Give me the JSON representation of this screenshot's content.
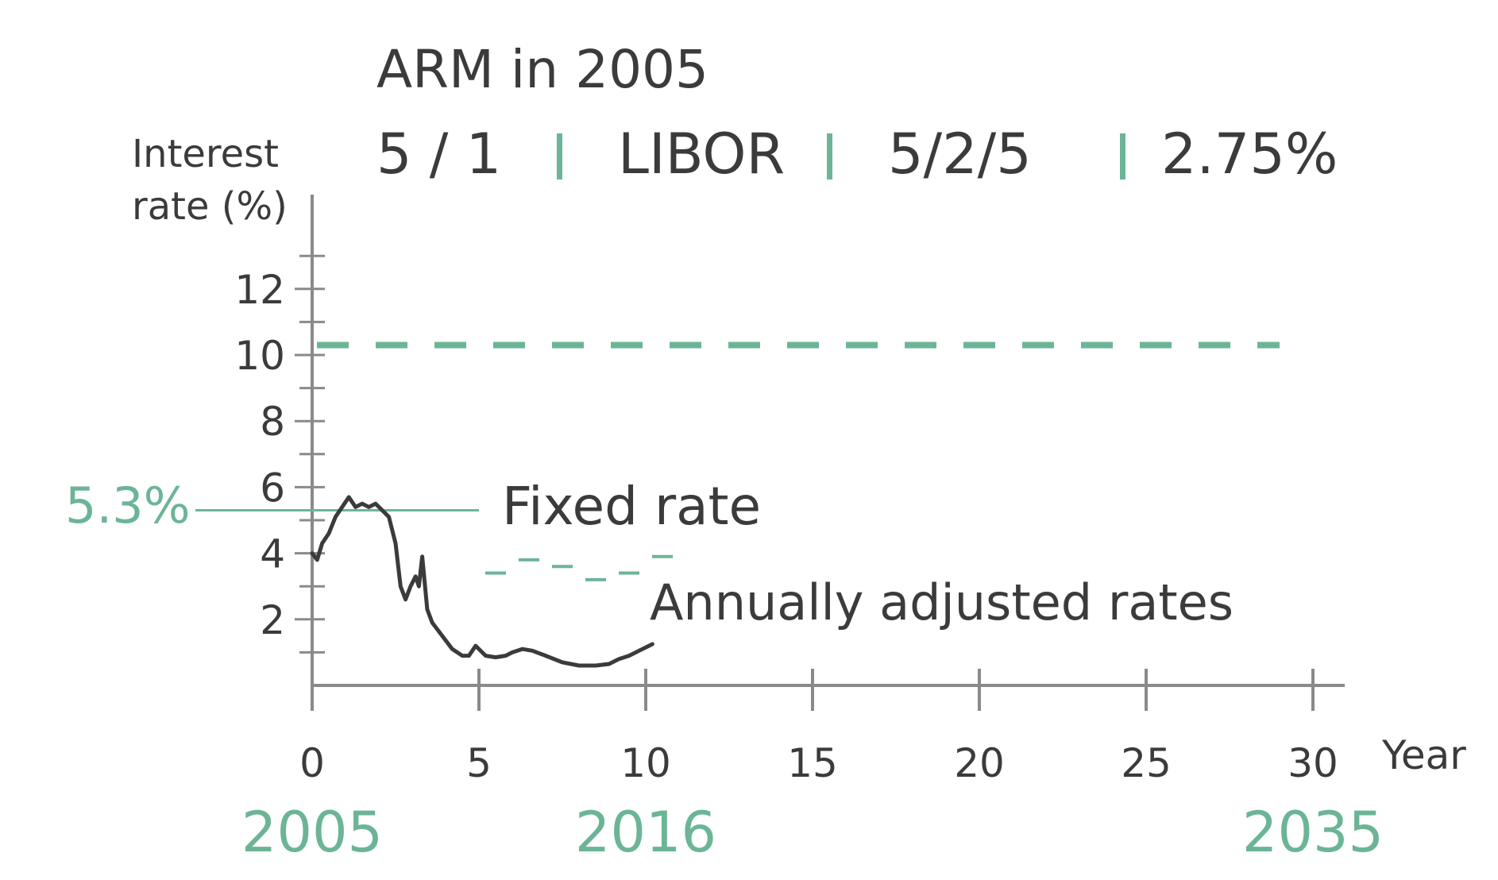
{
  "chart_data": {
    "type": "line",
    "title": "ARM in 2005",
    "subtitle_parts": [
      "5 / 1",
      "LIBOR",
      "5/2/5",
      "2.75%"
    ],
    "ylabel_line1": "Interest",
    "ylabel_line2": "rate (%)",
    "xlabel": "Year",
    "xlim": [
      0,
      30
    ],
    "ylim": [
      0,
      14
    ],
    "x_ticks": [
      0,
      5,
      10,
      15,
      20,
      25,
      30
    ],
    "y_ticks": [
      2,
      4,
      6,
      8,
      10,
      12
    ],
    "year_labels": [
      {
        "x": 0,
        "label": "2005"
      },
      {
        "x": 10,
        "label": "2016"
      },
      {
        "x": 30,
        "label": "2035"
      }
    ],
    "cap_rate": 10.3,
    "fixed_rate": {
      "value": 5.3,
      "label_value": "5.3%",
      "label": "Fixed rate"
    },
    "annual_label": "Annually adjusted rates",
    "annual_segments": [
      {
        "x": [
          5,
          6
        ],
        "y": [
          3.4,
          3.4
        ]
      },
      {
        "x": [
          6,
          7
        ],
        "y": [
          3.8,
          3.8
        ]
      },
      {
        "x": [
          7,
          8
        ],
        "y": [
          3.6,
          3.6
        ]
      },
      {
        "x": [
          8,
          9
        ],
        "y": [
          3.2,
          3.2
        ]
      },
      {
        "x": [
          9,
          10
        ],
        "y": [
          3.4,
          3.4
        ]
      },
      {
        "x": [
          10,
          11
        ],
        "y": [
          3.9,
          3.9
        ]
      }
    ],
    "series": [
      {
        "x": [
          0,
          0.15,
          0.3,
          0.5,
          0.7,
          0.9,
          1.1,
          1.3,
          1.5,
          1.7,
          1.9,
          2.1,
          2.3,
          2.5,
          2.65,
          2.8,
          2.95,
          3.1,
          3.2,
          3.3,
          3.45,
          3.6,
          3.9,
          4.2,
          4.5,
          4.7,
          4.9,
          5.2,
          5.5,
          5.8,
          6.0,
          6.3,
          6.6,
          7.0,
          7.5,
          8.0,
          8.5,
          8.9,
          9.2,
          9.5,
          9.8,
          10.2
        ],
        "y": [
          4.0,
          3.8,
          4.3,
          4.6,
          5.1,
          5.4,
          5.7,
          5.4,
          5.5,
          5.4,
          5.5,
          5.3,
          5.1,
          4.3,
          3.0,
          2.6,
          3.0,
          3.3,
          3.0,
          3.9,
          2.3,
          1.9,
          1.5,
          1.1,
          0.9,
          0.9,
          1.2,
          0.9,
          0.85,
          0.9,
          1.0,
          1.1,
          1.05,
          0.9,
          0.7,
          0.6,
          0.6,
          0.65,
          0.8,
          0.9,
          1.05,
          1.25
        ]
      }
    ]
  }
}
